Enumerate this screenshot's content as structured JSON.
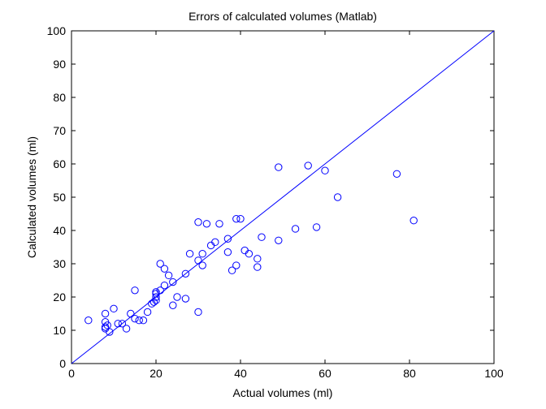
{
  "chart_data": {
    "type": "scatter",
    "title": "Errors of calculated volumes (Matlab)",
    "xlabel": "Actual volumes (ml)",
    "ylabel": "Calculated volumes (ml)",
    "xlim": [
      0,
      100
    ],
    "ylim": [
      0,
      100
    ],
    "xticks": [
      0,
      20,
      40,
      60,
      80,
      100
    ],
    "yticks": [
      0,
      10,
      20,
      30,
      40,
      50,
      60,
      70,
      80,
      90,
      100
    ],
    "grid": false,
    "box": true,
    "series": [
      {
        "marker": "circle",
        "color": "#0000ff",
        "points": [
          [
            4,
            13
          ],
          [
            8,
            15
          ],
          [
            8,
            12.5
          ],
          [
            8,
            11
          ],
          [
            8,
            10.5
          ],
          [
            8.5,
            11.5
          ],
          [
            9,
            9.5
          ],
          [
            10,
            16.5
          ],
          [
            11,
            12
          ],
          [
            12,
            12
          ],
          [
            13,
            10.5
          ],
          [
            14,
            15
          ],
          [
            15,
            22
          ],
          [
            15,
            13.5
          ],
          [
            16,
            13
          ],
          [
            17,
            13
          ],
          [
            18,
            15.5
          ],
          [
            19,
            18
          ],
          [
            19.5,
            18.5
          ],
          [
            20,
            19
          ],
          [
            20,
            20
          ],
          [
            20,
            21
          ],
          [
            20,
            21.5
          ],
          [
            21,
            22
          ],
          [
            21,
            30
          ],
          [
            22,
            23.5
          ],
          [
            22,
            28.5
          ],
          [
            23,
            26.5
          ],
          [
            24,
            24.5
          ],
          [
            24,
            17.5
          ],
          [
            25,
            20
          ],
          [
            27,
            27
          ],
          [
            27,
            19.5
          ],
          [
            28,
            33
          ],
          [
            30,
            42.5
          ],
          [
            30,
            31
          ],
          [
            30,
            15.5
          ],
          [
            31,
            33
          ],
          [
            31,
            29.5
          ],
          [
            32,
            42
          ],
          [
            33,
            35.5
          ],
          [
            34,
            36.5
          ],
          [
            35,
            42
          ],
          [
            37,
            37.5
          ],
          [
            37,
            33.5
          ],
          [
            38,
            28
          ],
          [
            39,
            43.5
          ],
          [
            39,
            29.5
          ],
          [
            40,
            43.5
          ],
          [
            41,
            34
          ],
          [
            42,
            33
          ],
          [
            44,
            31.5
          ],
          [
            44,
            29
          ],
          [
            45,
            38
          ],
          [
            49,
            59
          ],
          [
            49,
            37
          ],
          [
            53,
            40.5
          ],
          [
            56,
            59.5
          ],
          [
            58,
            41
          ],
          [
            60,
            58
          ],
          [
            63,
            50
          ],
          [
            77,
            57
          ],
          [
            81,
            43
          ]
        ]
      },
      {
        "type": "line",
        "color": "#0000ff",
        "x": [
          0,
          100
        ],
        "y": [
          0,
          100
        ]
      }
    ]
  }
}
